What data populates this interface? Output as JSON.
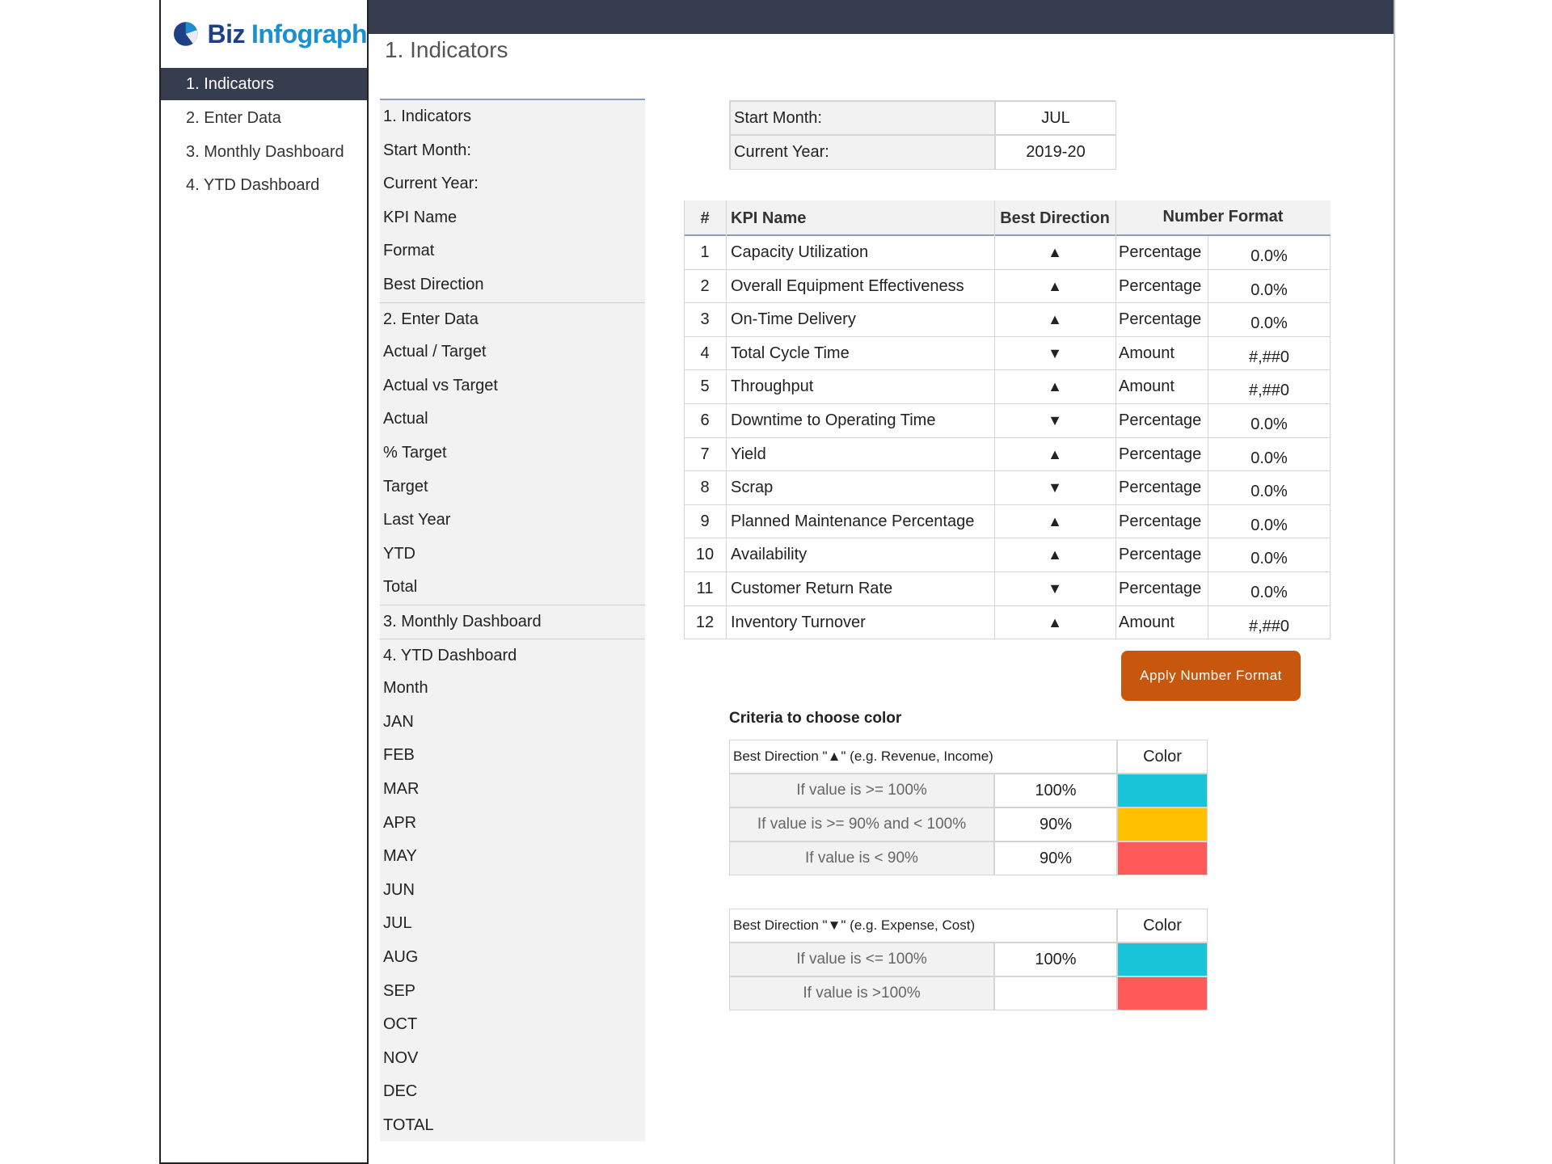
{
  "logo": {
    "word1": "Biz",
    "word2": "Infograph"
  },
  "colors": {
    "dark_nav": "#353d4f",
    "accent_blue": "#19c3d8",
    "accent_yellow": "#ffc000",
    "accent_red": "#ff5a5a",
    "button": "#c8560d"
  },
  "sidebar": {
    "items": [
      {
        "label": "1. Indicators",
        "active": true
      },
      {
        "label": "2. Enter Data",
        "active": false
      },
      {
        "label": "3. Monthly Dashboard",
        "active": false
      },
      {
        "label": "4. YTD Dashboard",
        "active": false
      }
    ]
  },
  "header": {
    "title": "1. Indicators"
  },
  "list_panel": {
    "items": [
      "1. Indicators",
      "Start Month:",
      "Current Year:",
      "KPI Name",
      "Format",
      "Best Direction",
      "2. Enter Data",
      "Actual / Target",
      "Actual vs Target",
      "Actual",
      "% Target",
      "Target",
      "Last Year",
      "YTD",
      "Total",
      "3. Monthly Dashboard",
      "4. YTD Dashboard",
      "Month",
      "JAN",
      "FEB",
      "MAR",
      "APR",
      "MAY",
      "JUN",
      "JUL",
      "AUG",
      "SEP",
      "OCT",
      "NOV",
      "DEC",
      "TOTAL"
    ]
  },
  "settings": {
    "start_month_label": "Start Month:",
    "start_month_value": "JUL",
    "current_year_label": "Current Year:",
    "current_year_value": "2019-20"
  },
  "kpi_table": {
    "headers": {
      "num": "#",
      "name": "KPI Name",
      "direction": "Best Direction",
      "format": "Number Format"
    },
    "rows": [
      {
        "num": "1",
        "name": "Capacity Utilization",
        "dir": "▲",
        "type": "Percentage",
        "fmt": "0.0%"
      },
      {
        "num": "2",
        "name": "Overall Equipment Effectiveness",
        "dir": "▲",
        "type": "Percentage",
        "fmt": "0.0%"
      },
      {
        "num": "3",
        "name": "On-Time Delivery",
        "dir": "▲",
        "type": "Percentage",
        "fmt": "0.0%"
      },
      {
        "num": "4",
        "name": "Total Cycle Time",
        "dir": "▼",
        "type": "Amount",
        "fmt": "#,##0"
      },
      {
        "num": "5",
        "name": "Throughput",
        "dir": "▲",
        "type": "Amount",
        "fmt": "#,##0"
      },
      {
        "num": "6",
        "name": "Downtime to Operating Time",
        "dir": "▼",
        "type": "Percentage",
        "fmt": "0.0%"
      },
      {
        "num": "7",
        "name": "Yield",
        "dir": "▲",
        "type": "Percentage",
        "fmt": "0.0%"
      },
      {
        "num": "8",
        "name": "Scrap",
        "dir": "▼",
        "type": "Percentage",
        "fmt": "0.0%"
      },
      {
        "num": "9",
        "name": "Planned Maintenance Percentage",
        "dir": "▲",
        "type": "Percentage",
        "fmt": "0.0%"
      },
      {
        "num": "10",
        "name": "Availability",
        "dir": "▲",
        "type": "Percentage",
        "fmt": "0.0%"
      },
      {
        "num": "11",
        "name": "Customer Return Rate",
        "dir": "▼",
        "type": "Percentage",
        "fmt": "0.0%"
      },
      {
        "num": "12",
        "name": "Inventory Turnover",
        "dir": "▲",
        "type": "Amount",
        "fmt": "#,##0"
      }
    ]
  },
  "apply_button": {
    "label": "Apply Number Format"
  },
  "criteria": {
    "title": "Criteria to choose color",
    "up": {
      "header": "Best Direction \"▲\" (e.g. Revenue, Income)",
      "color_header": "Color",
      "rows": [
        {
          "label": "If value is >= 100%",
          "value": "100%",
          "color": "#19c3d8"
        },
        {
          "label": "If value is >= 90% and < 100%",
          "value": "90%",
          "color": "#ffc000"
        },
        {
          "label": "If value is < 90%",
          "value": "90%",
          "color": "#ff5a5a"
        }
      ]
    },
    "down": {
      "header": "Best Direction \"▼\" (e.g. Expense, Cost)",
      "color_header": "Color",
      "rows": [
        {
          "label": "If value is <= 100%",
          "value": "100%",
          "color": "#19c3d8"
        },
        {
          "label": "If value is >100%",
          "value": "",
          "color": "#ff5a5a"
        }
      ]
    }
  }
}
